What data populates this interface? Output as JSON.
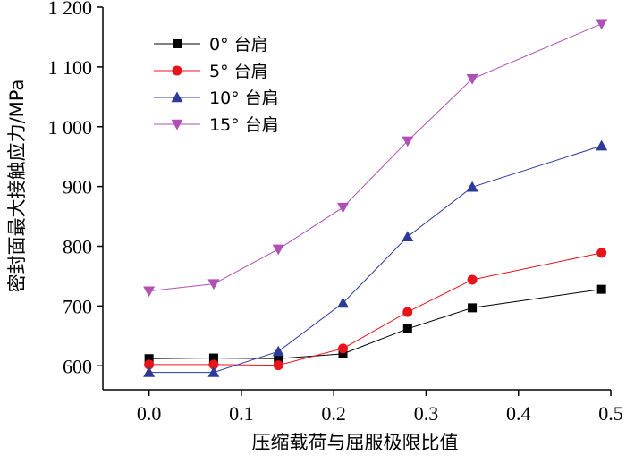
{
  "chart_data": {
    "type": "line",
    "title": "",
    "xlabel": "压缩载荷与屈服极限比值",
    "ylabel": "密封面最大接触应力/MPa",
    "xlim": [
      -0.05,
      0.5
    ],
    "ylim": [
      560,
      1200
    ],
    "x_ticks": [
      0.0,
      0.1,
      0.2,
      0.3,
      0.4,
      0.5
    ],
    "x_tick_labels": [
      "0.0",
      "0.1",
      "0.2",
      "0.3",
      "0.4",
      "0.5"
    ],
    "y_ticks": [
      600,
      700,
      800,
      900,
      1000,
      1100,
      1200
    ],
    "y_tick_labels": [
      "600",
      "700",
      "800",
      "900",
      "1 000",
      "1 100",
      "1 200"
    ],
    "legend_position": "top-left",
    "x": [
      0.0,
      0.07,
      0.14,
      0.21,
      0.28,
      0.35,
      0.49
    ],
    "series": [
      {
        "name": "0° 台肩",
        "marker": "square",
        "color": "#000000",
        "values": [
          612,
          613,
          612,
          620,
          662,
          697,
          728
        ]
      },
      {
        "name": "5° 台肩",
        "marker": "circle",
        "color": "#e8141b",
        "values": [
          602,
          602,
          601,
          629,
          690,
          744,
          789
        ]
      },
      {
        "name": "10° 台肩",
        "marker": "triangle-up",
        "color": "#2b3a9b",
        "values": [
          589,
          589,
          624,
          705,
          816,
          899,
          968
        ]
      },
      {
        "name": "15° 台肩",
        "marker": "triangle-down",
        "color": "#b050b5",
        "values": [
          725,
          737,
          795,
          865,
          976,
          1080,
          1172
        ]
      }
    ]
  }
}
